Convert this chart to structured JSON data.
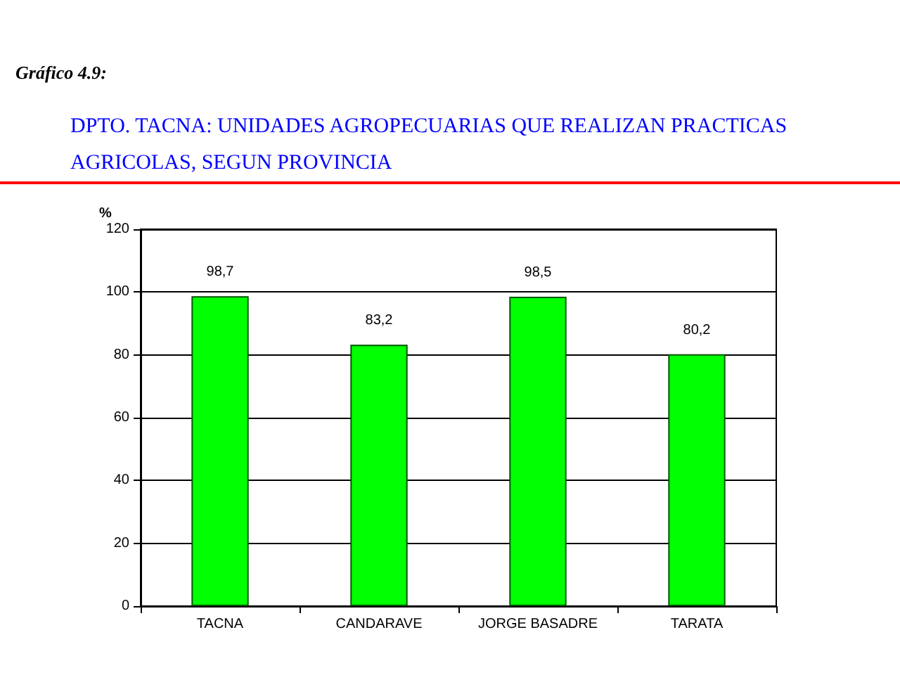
{
  "chart_data": {
    "type": "bar",
    "title": "Gráfico 4.9:",
    "subtitle": "DPTO. TACNA: UNIDADES AGROPECUARIAS QUE REALIZAN PRACTICAS AGRICOLAS, SEGUN PROVINCIA",
    "ylabel": "%",
    "categories": [
      "TACNA",
      "CANDARAVE",
      "JORGE BASADRE",
      "TARATA"
    ],
    "values": [
      98.7,
      83.2,
      98.5,
      80.2
    ],
    "value_labels": [
      "98,7",
      "83,2",
      "98,5",
      "80,2"
    ],
    "color": "#00ff00",
    "ylim": [
      0,
      120
    ],
    "yticks": [
      0,
      20,
      40,
      60,
      80,
      100,
      120
    ],
    "grid": "y"
  }
}
